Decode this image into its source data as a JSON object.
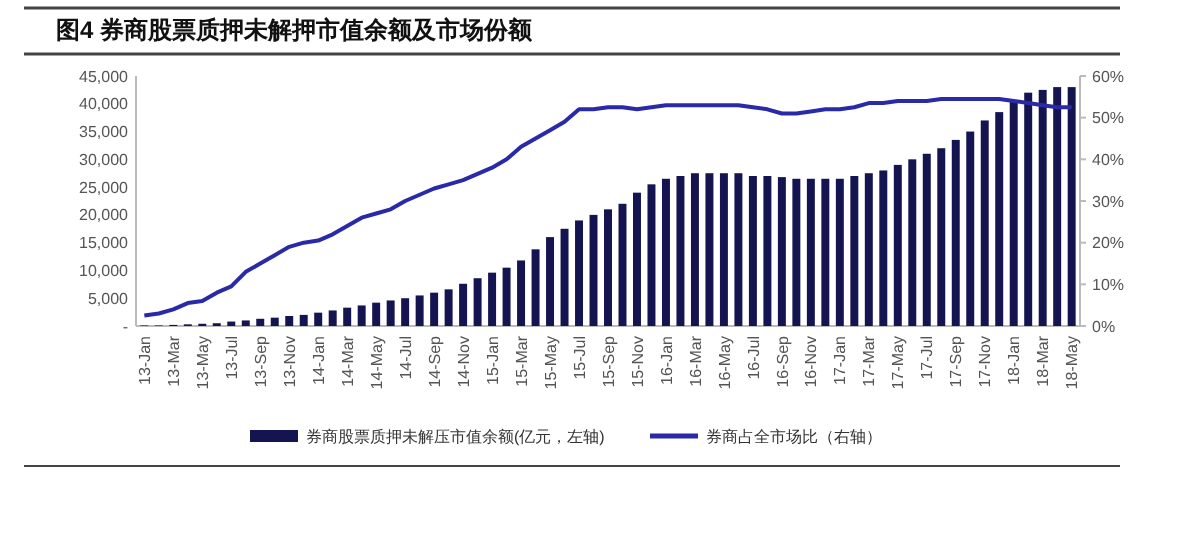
{
  "chart_data": {
    "type": "bar",
    "title": "图4  券商股票质押未解押市值余额及市场份额",
    "categories": [
      "13-Jan",
      null,
      "13-Mar",
      null,
      "13-May",
      null,
      "13-Jul",
      null,
      "13-Sep",
      null,
      "13-Nov",
      null,
      "14-Jan",
      null,
      "14-Mar",
      null,
      "14-May",
      null,
      "14-Jul",
      null,
      "14-Sep",
      null,
      "14-Nov",
      null,
      "15-Jan",
      null,
      "15-Mar",
      null,
      "15-May",
      null,
      "15-Jul",
      null,
      "15-Sep",
      null,
      "15-Nov",
      null,
      "16-Jan",
      null,
      "16-Mar",
      null,
      "16-May",
      null,
      "16-Jul",
      null,
      "16-Sep",
      null,
      "16-Nov",
      null,
      "17-Jan",
      null,
      "17-Mar",
      null,
      "17-May",
      null,
      "17-Jul",
      null,
      "17-Sep",
      null,
      "17-Nov",
      null,
      "18-Jan",
      null,
      "18-Mar",
      null,
      "18-May"
    ],
    "series": [
      {
        "name": "券商股票质押未解压市值余额(亿元，左轴)",
        "color": "#141450",
        "values": [
          100,
          100,
          200,
          300,
          400,
          500,
          800,
          1000,
          1300,
          1500,
          1800,
          2000,
          2400,
          2800,
          3300,
          3700,
          4200,
          4600,
          5000,
          5500,
          6000,
          6600,
          7600,
          8600,
          9600,
          10500,
          11800,
          13800,
          16000,
          17500,
          19000,
          20000,
          21000,
          22000,
          24000,
          25500,
          26500,
          27000,
          27500,
          27500,
          27500,
          27500,
          27000,
          27000,
          26800,
          26500,
          26500,
          26500,
          26500,
          27000,
          27500,
          28000,
          29000,
          30000,
          31000,
          32000,
          33500,
          35000,
          37000,
          38500,
          40500,
          42000,
          42500,
          43000,
          43000
        ]
      },
      {
        "name": "券商占全市场比（右轴）",
        "type": "line",
        "axis": "y2",
        "color": "#2a2aa8",
        "values": [
          2.5,
          3,
          4,
          5.5,
          6,
          8,
          9.5,
          13,
          15,
          17,
          19,
          20,
          20.5,
          22,
          24,
          26,
          27,
          28,
          30,
          31.5,
          33,
          34,
          35,
          36.5,
          38,
          40,
          43,
          45,
          47,
          49,
          52,
          52,
          52.5,
          52.5,
          52,
          52.5,
          53,
          53,
          53,
          53,
          53,
          53,
          52.5,
          52,
          51,
          51,
          51.5,
          52,
          52,
          52.5,
          53.5,
          53.5,
          54,
          54,
          54,
          54.5,
          54.5,
          54.5,
          54.5,
          54.5,
          54,
          53.5,
          53,
          52.5,
          52.5
        ]
      }
    ],
    "ylim": [
      0,
      45000
    ],
    "yticks": [
      {
        "value": 0,
        "label": "-"
      },
      {
        "value": 5000,
        "label": "5,000"
      },
      {
        "value": 10000,
        "label": "10,000"
      },
      {
        "value": 15000,
        "label": "15,000"
      },
      {
        "value": 20000,
        "label": "20,000"
      },
      {
        "value": 25000,
        "label": "25,000"
      },
      {
        "value": 30000,
        "label": "30,000"
      },
      {
        "value": 35000,
        "label": "35,000"
      },
      {
        "value": 40000,
        "label": "40,000"
      },
      {
        "value": 45000,
        "label": "45,000"
      }
    ],
    "y2lim": [
      0,
      60
    ],
    "y2ticks": [
      {
        "value": 0,
        "label": "0%"
      },
      {
        "value": 10,
        "label": "10%"
      },
      {
        "value": 20,
        "label": "20%"
      },
      {
        "value": 30,
        "label": "30%"
      },
      {
        "value": 40,
        "label": "40%"
      },
      {
        "value": 50,
        "label": "50%"
      },
      {
        "value": 60,
        "label": "60%"
      }
    ],
    "legend": "bottom",
    "grid": false,
    "marker": "none",
    "line_style": "solid"
  }
}
